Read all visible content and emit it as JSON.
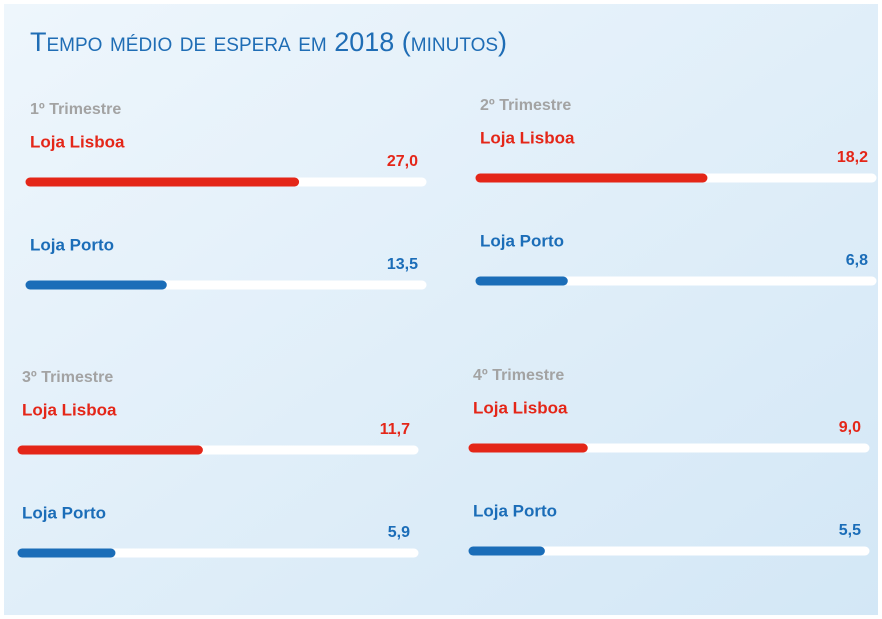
{
  "title": "Tempo médio de espera em 2018 (minutos)",
  "chart_data": [
    {
      "type": "bar",
      "title": "1º Trimestre",
      "categories": [
        "Loja Lisboa",
        "Loja Porto"
      ],
      "values": [
        27.0,
        13.5
      ],
      "value_labels": [
        "27,0",
        "13,5"
      ],
      "colors": [
        "#e42618",
        "#1b6db8"
      ],
      "xlim": [
        0,
        40
      ]
    },
    {
      "type": "bar",
      "title": "2º Trimestre",
      "categories": [
        "Loja Lisboa",
        "Loja Porto"
      ],
      "values": [
        18.2,
        6.8
      ],
      "value_labels": [
        "18,2",
        "6,8"
      ],
      "colors": [
        "#e42618",
        "#1b6db8"
      ],
      "xlim": [
        0,
        32
      ]
    },
    {
      "type": "bar",
      "title": "3º Trimestre",
      "categories": [
        "Loja Lisboa",
        "Loja Porto"
      ],
      "values": [
        11.7,
        5.9
      ],
      "value_labels": [
        "11,7",
        "5,9"
      ],
      "colors": [
        "#e42618",
        "#1b6db8"
      ],
      "xlim": [
        0,
        26
      ]
    },
    {
      "type": "bar",
      "title": "4º Trimestre",
      "categories": [
        "Loja Lisboa",
        "Loja Porto"
      ],
      "values": [
        9.0,
        5.5
      ],
      "value_labels": [
        "9,0",
        "5,5"
      ],
      "colors": [
        "#e42618",
        "#1b6db8"
      ],
      "xlim": [
        0,
        32
      ]
    }
  ]
}
